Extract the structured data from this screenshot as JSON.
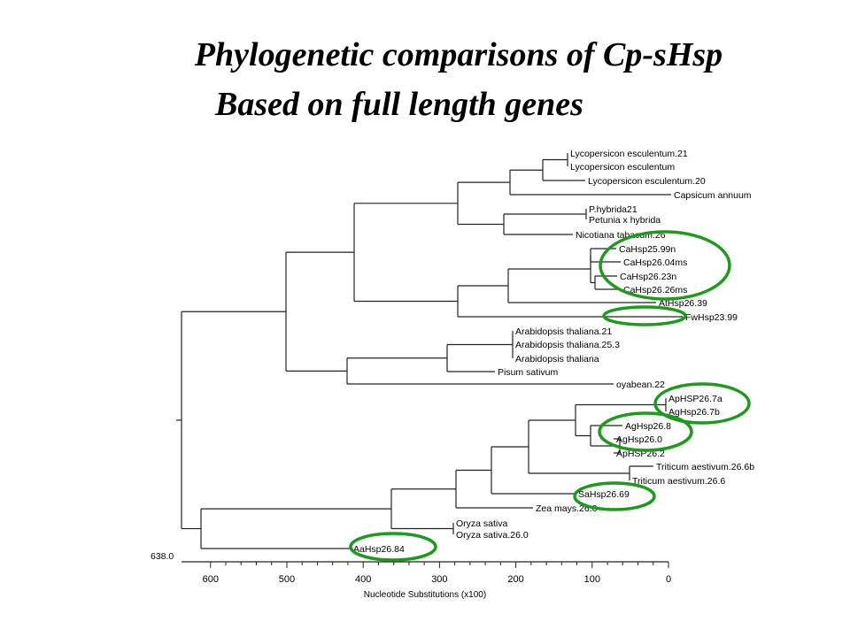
{
  "title_line1": "Phylogenetic comparisons of Cp-sHsp",
  "title_line2": "Based on full length genes",
  "root_label": "638.0",
  "axis": {
    "label": "Nucleotide Substitutions (x100)",
    "ticks": [
      600,
      500,
      400,
      300,
      200,
      100,
      0
    ],
    "domain": [
      638,
      0
    ]
  },
  "highlight_color": "#1b9a1b",
  "taxa": [
    "Lycopersicon esculentum.21",
    "Lycopersicon esculentum",
    "Lycopersicon esculentum.20",
    "Capsicum annuum",
    "P.hybrida21",
    "Petunia x hybrida",
    "Nicotiana tabacum.26",
    "CaHsp25.99n",
    "CaHsp26.04ms",
    "CaHsp26.23n",
    "CaHsp26.26ms",
    "AtHsp26.39",
    "FwHsp23.99",
    "Arabidopsis thaliana.21",
    "Arabidopsis thaliana.25.3",
    "Arabidopsis thaliana",
    "Pisum sativum",
    "oyabean.22",
    "ApHSP26.7a",
    "AgHsp26.7b",
    "AgHsp26.8",
    "AgHsp26.0",
    "ApHSP26.2",
    "Triticum aestivum.26.6b",
    "Triticum aestivum.26.6",
    "SaHsp26.69",
    "Zea mays.26.0",
    "Oryza sativa",
    "Oryza sativa.26.0",
    "AaHsp26.84"
  ]
}
